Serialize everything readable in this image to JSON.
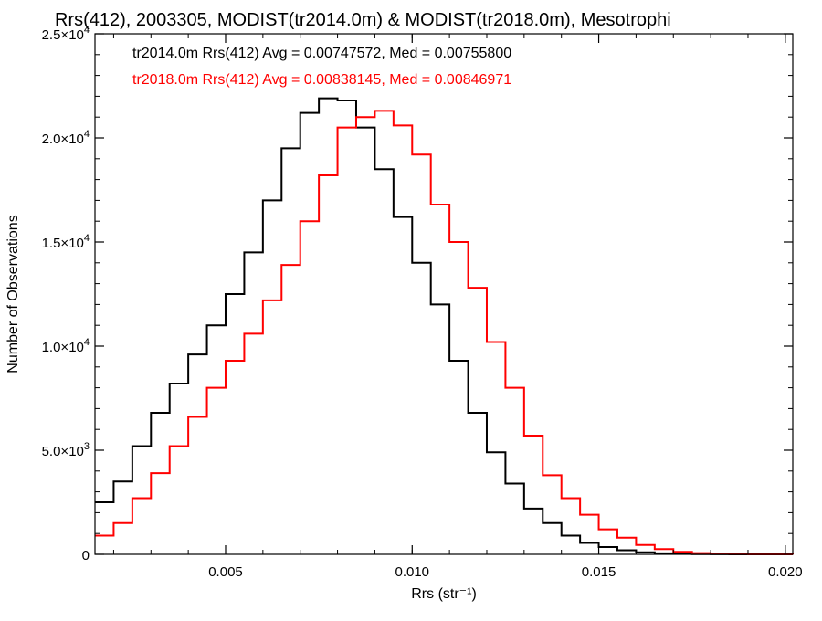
{
  "chart_data": {
    "type": "line",
    "title": "Rrs(412), 2003305, MODIST(tr2014.0m) & MODIST(tr2018.0m), Mesotrophi",
    "xlabel": "Rrs (str⁻¹)",
    "ylabel": "Number of Observations",
    "xlim": [
      0.0015,
      0.0202
    ],
    "ylim": [
      0,
      25000
    ],
    "x_ticks": [
      {
        "value": 0.005,
        "label": "0.005"
      },
      {
        "value": 0.01,
        "label": "0.010"
      },
      {
        "value": 0.015,
        "label": "0.015"
      },
      {
        "value": 0.02,
        "label": "0.020"
      }
    ],
    "y_ticks": [
      {
        "value": 0,
        "label": "0"
      },
      {
        "value": 5000,
        "label": "5.0×10",
        "exp": "3"
      },
      {
        "value": 10000,
        "label": "1.0×10",
        "exp": "4"
      },
      {
        "value": 15000,
        "label": "1.5×10",
        "exp": "4"
      },
      {
        "value": 20000,
        "label": "2.0×10",
        "exp": "4"
      },
      {
        "value": 25000,
        "label": "2.5×10",
        "exp": "4"
      }
    ],
    "annotations": [
      {
        "text": "tr2014.0m Rrs(412) Avg = 0.00747572, Med = 0.00755800",
        "color": "#000000"
      },
      {
        "text": "tr2018.0m Rrs(412) Avg = 0.00838145, Med = 0.00846971",
        "color": "#ff0000"
      }
    ],
    "series": [
      {
        "color": "#000000",
        "x": [
          0.0015,
          0.002,
          0.0025,
          0.003,
          0.0035,
          0.004,
          0.0045,
          0.005,
          0.0055,
          0.006,
          0.0065,
          0.007,
          0.0075,
          0.008,
          0.0085,
          0.009,
          0.0095,
          0.01,
          0.0105,
          0.011,
          0.0115,
          0.012,
          0.0125,
          0.013,
          0.0135,
          0.014,
          0.0145,
          0.015,
          0.0155,
          0.016,
          0.0165,
          0.017,
          0.0175,
          0.018,
          0.0185,
          0.019,
          0.0195,
          0.02,
          0.0202
        ],
        "y": [
          2500,
          3500,
          5200,
          6800,
          8200,
          9600,
          11000,
          12500,
          14500,
          17000,
          19500,
          21200,
          21900,
          21800,
          20500,
          18500,
          16200,
          14000,
          12000,
          9300,
          6800,
          4900,
          3400,
          2200,
          1500,
          900,
          550,
          350,
          200,
          100,
          50,
          20,
          10,
          5,
          2,
          1,
          0,
          0,
          0
        ]
      },
      {
        "color": "#ff0000",
        "x": [
          0.0015,
          0.002,
          0.0025,
          0.003,
          0.0035,
          0.004,
          0.0045,
          0.005,
          0.0055,
          0.006,
          0.0065,
          0.007,
          0.0075,
          0.008,
          0.0085,
          0.009,
          0.0095,
          0.01,
          0.0105,
          0.011,
          0.0115,
          0.012,
          0.0125,
          0.013,
          0.0135,
          0.014,
          0.0145,
          0.015,
          0.0155,
          0.016,
          0.0165,
          0.017,
          0.0175,
          0.018,
          0.0185,
          0.019,
          0.0195,
          0.02,
          0.0202
        ],
        "y": [
          900,
          1500,
          2700,
          3900,
          5200,
          6600,
          8000,
          9300,
          10600,
          12200,
          13900,
          16000,
          18200,
          20500,
          21000,
          21300,
          20600,
          19200,
          16800,
          15000,
          12800,
          10200,
          8000,
          5700,
          3800,
          2700,
          1900,
          1200,
          800,
          450,
          250,
          120,
          60,
          30,
          15,
          8,
          5,
          2,
          0
        ]
      }
    ]
  }
}
